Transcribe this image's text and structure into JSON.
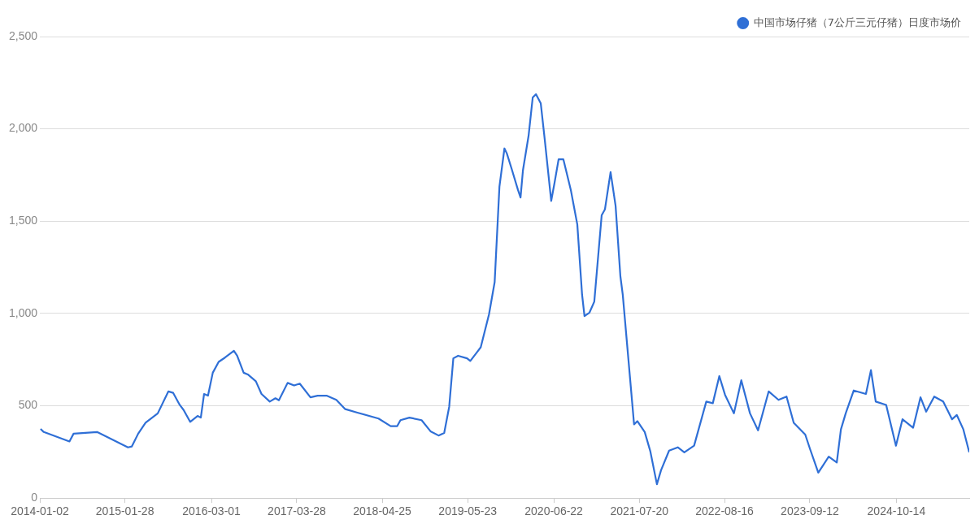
{
  "chart_data": {
    "type": "line",
    "legend": "top right",
    "grid": "y",
    "xlim": [
      "2014-01-02",
      "2025-09-14"
    ],
    "xticks": [
      "2014-01-02",
      "2015-01-28",
      "2016-03-01",
      "2017-03-28",
      "2018-04-25",
      "2019-05-23",
      "2020-06-22",
      "2021-07-20",
      "2022-08-16",
      "2023-09-12",
      "2024-10-14"
    ],
    "ylim": [
      0,
      2500
    ],
    "yticks": [
      0,
      {
        "value": 500,
        "label": "500"
      },
      {
        "value": 1000,
        "label": "1,000"
      },
      {
        "value": 1500,
        "label": "1,500"
      },
      {
        "value": 2000,
        "label": "2,000"
      },
      {
        "value": 2500,
        "label": "2,500"
      }
    ],
    "series": [
      {
        "name": "中国市场仔猪（7公斤三元仔猪）日度市场价",
        "color": "#2f6fd6",
        "x": [
          "2014-01-05",
          "2014-01-20",
          "2014-05-18",
          "2014-06-06",
          "2014-09-22",
          "2015-02-11",
          "2015-03-01",
          "2015-03-30",
          "2015-05-03",
          "2015-06-28",
          "2015-08-16",
          "2015-09-07",
          "2015-10-07",
          "2015-10-25",
          "2015-11-24",
          "2015-12-28",
          "2016-01-12",
          "2016-01-27",
          "2016-02-14",
          "2016-03-07",
          "2016-04-03",
          "2016-05-02",
          "2016-06-12",
          "2016-06-27",
          "2016-07-27",
          "2016-08-15",
          "2016-09-21",
          "2016-10-17",
          "2016-11-24",
          "2016-12-20",
          "2017-01-05",
          "2017-02-14",
          "2017-03-16",
          "2017-04-11",
          "2017-05-30",
          "2017-07-02",
          "2017-08-12",
          "2017-09-26",
          "2017-11-06",
          "2018-01-01",
          "2018-04-08",
          "2018-06-03",
          "2018-07-03",
          "2018-07-18",
          "2018-08-28",
          "2018-10-23",
          "2018-12-03",
          "2019-01-09",
          "2019-02-04",
          "2019-02-27",
          "2019-03-18",
          "2019-04-09",
          "2019-05-20",
          "2019-06-04",
          "2019-07-04",
          "2019-07-22",
          "2019-08-29",
          "2019-09-24",
          "2019-10-16",
          "2019-11-08",
          "2019-11-19",
          "2019-12-11",
          "2020-01-09",
          "2020-01-21",
          "2020-02-01",
          "2020-02-27",
          "2020-03-17",
          "2020-04-01",
          "2020-04-23",
          "2020-05-11",
          "2020-06-10",
          "2020-06-25",
          "2020-07-14",
          "2020-08-05",
          "2020-09-08",
          "2020-10-08",
          "2020-10-30",
          "2020-11-10",
          "2020-12-03",
          "2020-12-25",
          "2021-01-28",
          "2021-02-12",
          "2021-03-10",
          "2021-04-02",
          "2021-04-24",
          "2021-05-05",
          "2021-06-26",
          "2021-07-11",
          "2021-08-14",
          "2021-09-09",
          "2021-10-09",
          "2021-10-28",
          "2021-12-04",
          "2022-01-13",
          "2022-02-12",
          "2022-03-29",
          "2022-05-24",
          "2022-06-23",
          "2022-07-23",
          "2022-08-18",
          "2022-09-28",
          "2022-11-01",
          "2022-12-11",
          "2023-01-17",
          "2023-03-07",
          "2023-04-21",
          "2023-05-28",
          "2023-06-30",
          "2023-08-22",
          "2023-09-13",
          "2023-10-21",
          "2023-12-08",
          "2024-01-14",
          "2024-02-02",
          "2024-02-24",
          "2024-04-01",
          "2024-05-27",
          "2024-06-19",
          "2024-07-11",
          "2024-08-28",
          "2024-10-12",
          "2024-11-11",
          "2024-12-30",
          "2025-02-02",
          "2025-02-28",
          "2025-04-06",
          "2025-05-17",
          "2025-06-27",
          "2025-07-19",
          "2025-08-18",
          "2025-09-14"
        ],
        "values": [
          375,
          358,
          307,
          349,
          358,
          275,
          280,
          349,
          408,
          459,
          578,
          570,
          505,
          477,
          413,
          445,
          436,
          564,
          555,
          679,
          738,
          761,
          798,
          771,
          679,
          670,
          633,
          564,
          523,
          541,
          530,
          624,
          610,
          620,
          546,
          555,
          555,
          532,
          482,
          463,
          431,
          390,
          390,
          422,
          436,
          422,
          362,
          339,
          353,
          495,
          757,
          771,
          757,
          743,
          789,
          817,
          995,
          1170,
          1688,
          1894,
          1867,
          1784,
          1670,
          1628,
          1775,
          1963,
          2170,
          2188,
          2138,
          1945,
          1610,
          1706,
          1835,
          1835,
          1670,
          1482,
          1101,
          986,
          1005,
          1064,
          1532,
          1564,
          1766,
          1583,
          1202,
          1101,
          399,
          417,
          358,
          252,
          75,
          151,
          257,
          275,
          248,
          284,
          523,
          514,
          661,
          560,
          459,
          638,
          459,
          367,
          578,
          532,
          550,
          408,
          344,
          266,
          138,
          225,
          193,
          372,
          459,
          583,
          564,
          693,
          523,
          505,
          284,
          427,
          381,
          546,
          468,
          550,
          523,
          427,
          450,
          372,
          248
        ]
      }
    ]
  }
}
